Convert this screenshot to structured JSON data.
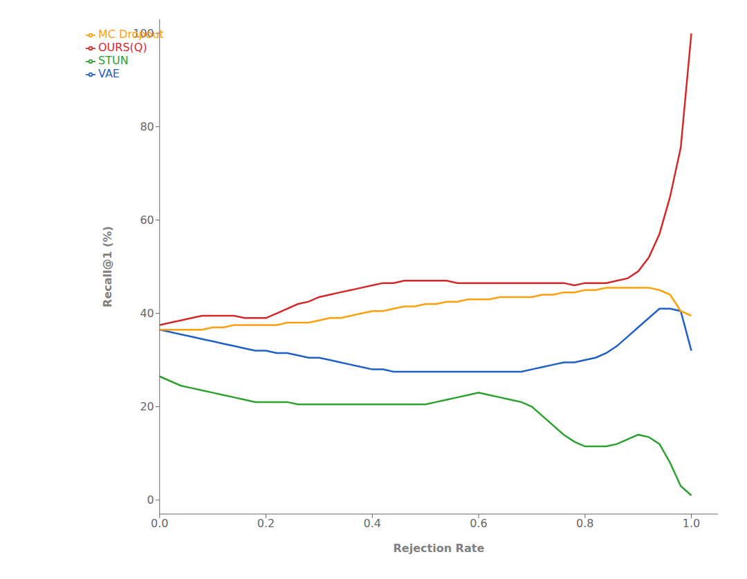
{
  "chart_data": {
    "type": "line",
    "xlabel": "Rejection Rate",
    "ylabel": "Recall@1 (%)",
    "x": [
      0.0,
      0.02,
      0.04,
      0.06,
      0.08,
      0.1,
      0.12,
      0.14,
      0.16,
      0.18,
      0.2,
      0.22,
      0.24,
      0.26,
      0.28,
      0.3,
      0.32,
      0.34,
      0.36,
      0.38,
      0.4,
      0.42,
      0.44,
      0.46,
      0.48,
      0.5,
      0.52,
      0.54,
      0.56,
      0.58,
      0.6,
      0.62,
      0.64,
      0.66,
      0.68,
      0.7,
      0.72,
      0.74,
      0.76,
      0.78,
      0.8,
      0.82,
      0.84,
      0.86,
      0.88,
      0.9,
      0.92,
      0.94,
      0.96,
      0.98,
      1.0
    ],
    "series": [
      {
        "name": "VAE",
        "color": "#1f5fc8",
        "values": [
          36.5,
          36.0,
          35.5,
          35.0,
          34.5,
          34.0,
          33.5,
          33.0,
          32.5,
          32.0,
          32.0,
          31.5,
          31.5,
          31.0,
          30.5,
          30.5,
          30.0,
          29.5,
          29.0,
          28.5,
          28.0,
          28.0,
          27.5,
          27.5,
          27.5,
          27.5,
          27.5,
          27.5,
          27.5,
          27.5,
          27.5,
          27.5,
          27.5,
          27.5,
          27.5,
          28.0,
          28.5,
          29.0,
          29.5,
          29.5,
          30.0,
          30.5,
          31.5,
          33.0,
          35.0,
          37.0,
          39.0,
          41.0,
          41.0,
          40.5,
          32.0
        ]
      },
      {
        "name": "STUN",
        "color": "#2ca02c",
        "values": [
          26.5,
          25.5,
          24.5,
          24.0,
          23.5,
          23.0,
          22.5,
          22.0,
          21.5,
          21.0,
          21.0,
          21.0,
          21.0,
          20.5,
          20.5,
          20.5,
          20.5,
          20.5,
          20.5,
          20.5,
          20.5,
          20.5,
          20.5,
          20.5,
          20.5,
          20.5,
          21.0,
          21.5,
          22.0,
          22.5,
          23.0,
          22.5,
          22.0,
          21.5,
          21.0,
          20.0,
          18.0,
          16.0,
          14.0,
          12.5,
          11.5,
          11.5,
          11.5,
          12.0,
          13.0,
          14.0,
          13.5,
          12.0,
          8.0,
          3.0,
          1.0
        ]
      },
      {
        "name": "MC Dropout",
        "color": "#ff9f0a",
        "values": [
          36.5,
          36.5,
          36.5,
          36.5,
          36.5,
          37.0,
          37.0,
          37.5,
          37.5,
          37.5,
          37.5,
          37.5,
          38.0,
          38.0,
          38.0,
          38.5,
          39.0,
          39.0,
          39.5,
          40.0,
          40.5,
          40.5,
          41.0,
          41.5,
          41.5,
          42.0,
          42.0,
          42.5,
          42.5,
          43.0,
          43.0,
          43.0,
          43.5,
          43.5,
          43.5,
          43.5,
          44.0,
          44.0,
          44.5,
          44.5,
          45.0,
          45.0,
          45.5,
          45.5,
          45.5,
          45.5,
          45.5,
          45.0,
          44.0,
          40.5,
          39.5
        ]
      },
      {
        "name": "OURS(Q)",
        "color": "#d62728",
        "values": [
          37.5,
          38.0,
          38.5,
          39.0,
          39.5,
          39.5,
          39.5,
          39.5,
          39.0,
          39.0,
          39.0,
          40.0,
          41.0,
          42.0,
          42.5,
          43.5,
          44.0,
          44.5,
          45.0,
          45.5,
          46.0,
          46.5,
          46.5,
          47.0,
          47.0,
          47.0,
          47.0,
          47.0,
          46.5,
          46.5,
          46.5,
          46.5,
          46.5,
          46.5,
          46.5,
          46.5,
          46.5,
          46.5,
          46.5,
          46.0,
          46.5,
          46.5,
          46.5,
          47.0,
          47.5,
          49.0,
          52.0,
          57.0,
          65.0,
          75.5,
          100.0
        ]
      }
    ],
    "xlim": [
      0.0,
      1.05
    ],
    "ylim": [
      -3,
      103
    ],
    "xticks": [
      {
        "value": 0,
        "label": "0.0"
      },
      0.2,
      0.4,
      0.6,
      0.8,
      {
        "value": 1,
        "label": "1.0"
      }
    ],
    "yticks": [
      0,
      20,
      40,
      60,
      80,
      100
    ],
    "legend": "upper left",
    "grid": false
  }
}
